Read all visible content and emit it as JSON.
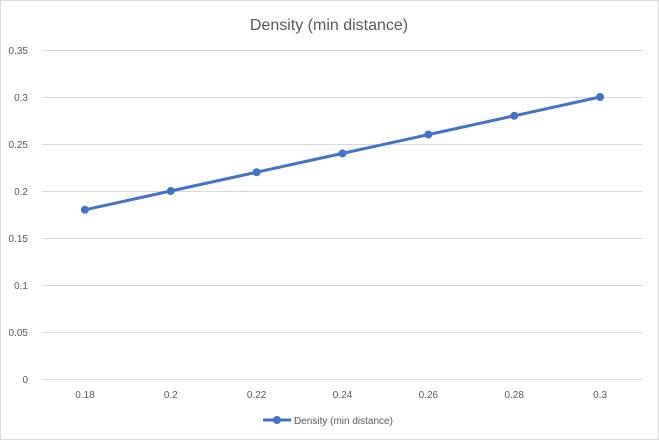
{
  "chart_data": {
    "type": "line",
    "title": "Density (min distance)",
    "xlabel": "",
    "ylabel": "",
    "x": [
      0.18,
      0.2,
      0.22,
      0.24,
      0.26,
      0.28,
      0.3
    ],
    "x_tick_labels": [
      "0.18",
      "0.2",
      "0.22",
      "0.24",
      "0.26",
      "0.28",
      "0.3"
    ],
    "y_tick_labels": [
      "0",
      "0.05",
      "0.1",
      "0.15",
      "0.2",
      "0.25",
      "0.3",
      "0.35"
    ],
    "y_ticks": [
      0,
      0.05,
      0.1,
      0.15,
      0.2,
      0.25,
      0.3,
      0.35
    ],
    "ylim": [
      0,
      0.35
    ],
    "grid": true,
    "legend_position": "bottom",
    "series": [
      {
        "name": "Density (min distance)",
        "values": [
          0.18,
          0.2,
          0.22,
          0.24,
          0.26,
          0.28,
          0.3
        ],
        "color": "#4472c4"
      }
    ]
  }
}
